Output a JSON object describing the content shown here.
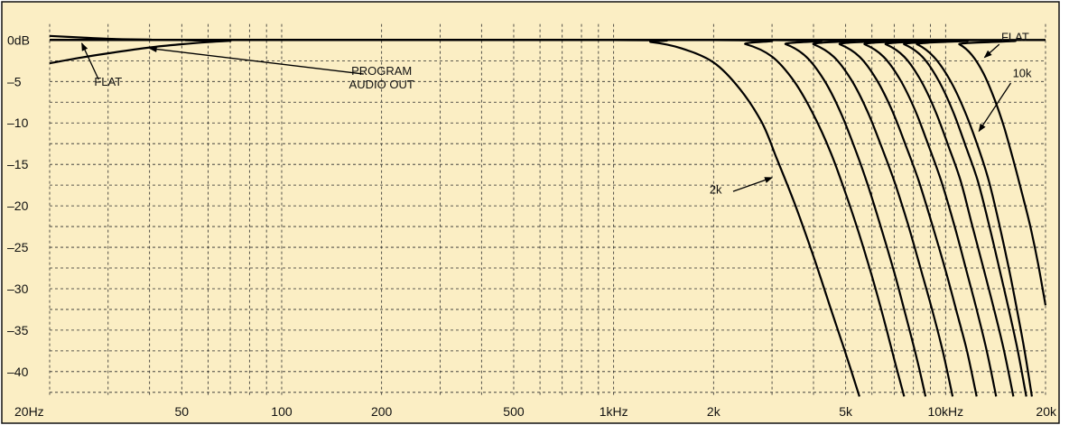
{
  "colors": {
    "background": "#fbeec4",
    "border": "#111111",
    "grid": "#2a2a2a",
    "curve": "#000000",
    "text": "#111111"
  },
  "chart_data": {
    "type": "line",
    "title": "",
    "xlabel": "",
    "ylabel": "",
    "x_scale": "log",
    "xlim": [
      20,
      20000
    ],
    "ylim": [
      -42.5,
      1.5
    ],
    "grid": true,
    "x_ticks": [
      {
        "value": 20,
        "label": "20Hz"
      },
      {
        "value": 50,
        "label": "50"
      },
      {
        "value": 100,
        "label": "100"
      },
      {
        "value": 200,
        "label": "200"
      },
      {
        "value": 500,
        "label": "500"
      },
      {
        "value": 1000,
        "label": "1kHz"
      },
      {
        "value": 2000,
        "label": "2k"
      },
      {
        "value": 5000,
        "label": "5k"
      },
      {
        "value": 10000,
        "label": "10kHz"
      },
      {
        "value": 20000,
        "label": "20k"
      }
    ],
    "y_ticks": [
      {
        "value": 0,
        "label": "0dB"
      },
      {
        "value": -5,
        "label": "–5"
      },
      {
        "value": -10,
        "label": "–10"
      },
      {
        "value": -15,
        "label": "–15"
      },
      {
        "value": -20,
        "label": "–20"
      },
      {
        "value": -25,
        "label": "–25"
      },
      {
        "value": -30,
        "label": "–30"
      },
      {
        "value": -35,
        "label": "–35"
      },
      {
        "value": -40,
        "label": "–40"
      }
    ],
    "series": [
      {
        "label": "FLAT (low end)",
        "points": [
          [
            20,
            0.5
          ],
          [
            25,
            0.3
          ],
          [
            30,
            0.15
          ],
          [
            40,
            0.05
          ],
          [
            60,
            0
          ],
          [
            20000,
            0
          ]
        ]
      },
      {
        "label": "PROGRAM AUDIO OUT",
        "points": [
          [
            20,
            -2.8
          ],
          [
            25,
            -2.1
          ],
          [
            30,
            -1.6
          ],
          [
            40,
            -0.9
          ],
          [
            50,
            -0.5
          ],
          [
            60,
            -0.25
          ],
          [
            70,
            -0.1
          ],
          [
            80,
            0
          ],
          [
            20000,
            0
          ]
        ]
      },
      {
        "points": [
          [
            20,
            0
          ],
          [
            1000,
            0
          ],
          [
            1300,
            -0.25
          ],
          [
            1600,
            -1.0
          ],
          [
            2000,
            -2.7
          ],
          [
            2400,
            -5.9
          ],
          [
            2800,
            -10.0
          ],
          [
            3100,
            -14.3
          ],
          [
            3500,
            -19.6
          ],
          [
            4000,
            -26.1
          ],
          [
            4500,
            -32.3
          ],
          [
            5000,
            -37.8
          ],
          [
            5500,
            -43.0
          ]
        ]
      },
      {
        "points": [
          [
            20,
            0
          ],
          [
            2000,
            0
          ],
          [
            2500,
            -0.5
          ],
          [
            3000,
            -2.0
          ],
          [
            3500,
            -5.0
          ],
          [
            4000,
            -9.0
          ],
          [
            4500,
            -13.5
          ],
          [
            5000,
            -18.5
          ],
          [
            5500,
            -23.5
          ],
          [
            6000,
            -28.5
          ],
          [
            6500,
            -33.5
          ],
          [
            7000,
            -38.5
          ],
          [
            7500,
            -43.0
          ]
        ]
      },
      {
        "points": [
          [
            20,
            0
          ],
          [
            2800,
            0
          ],
          [
            3300,
            -0.5
          ],
          [
            3800,
            -2.0
          ],
          [
            4300,
            -4.8
          ],
          [
            4800,
            -8.5
          ],
          [
            5300,
            -12.8
          ],
          [
            5800,
            -17.2
          ],
          [
            6300,
            -21.8
          ],
          [
            7000,
            -28.0
          ],
          [
            7500,
            -32.5
          ],
          [
            8200,
            -38.5
          ],
          [
            8700,
            -43.0
          ]
        ]
      },
      {
        "points": [
          [
            20,
            0
          ],
          [
            3500,
            0
          ],
          [
            4000,
            -0.5
          ],
          [
            4600,
            -2.0
          ],
          [
            5200,
            -4.8
          ],
          [
            5800,
            -8.5
          ],
          [
            6400,
            -12.8
          ],
          [
            7000,
            -17.0
          ],
          [
            7700,
            -22.2
          ],
          [
            8400,
            -27.5
          ],
          [
            9100,
            -32.5
          ],
          [
            9800,
            -37.5
          ],
          [
            10500,
            -43.0
          ]
        ]
      },
      {
        "points": [
          [
            20,
            0
          ],
          [
            4200,
            0
          ],
          [
            4800,
            -0.5
          ],
          [
            5500,
            -2.0
          ],
          [
            6200,
            -4.8
          ],
          [
            6900,
            -8.5
          ],
          [
            7600,
            -12.8
          ],
          [
            8300,
            -17.0
          ],
          [
            9100,
            -22.2
          ],
          [
            10000,
            -27.8
          ],
          [
            10800,
            -32.8
          ],
          [
            11600,
            -37.5
          ],
          [
            12400,
            -43.0
          ]
        ]
      },
      {
        "points": [
          [
            20,
            0
          ],
          [
            5000,
            0
          ],
          [
            5700,
            -0.5
          ],
          [
            6500,
            -2.0
          ],
          [
            7300,
            -4.8
          ],
          [
            8100,
            -8.5
          ],
          [
            8900,
            -12.8
          ],
          [
            9700,
            -17.0
          ],
          [
            10600,
            -22.2
          ],
          [
            11500,
            -27.5
          ],
          [
            12400,
            -32.5
          ],
          [
            13300,
            -37.5
          ],
          [
            14200,
            -43.0
          ]
        ]
      },
      {
        "points": [
          [
            20,
            0
          ],
          [
            5800,
            0
          ],
          [
            6600,
            -0.5
          ],
          [
            7500,
            -2.0
          ],
          [
            8400,
            -4.8
          ],
          [
            9300,
            -8.5
          ],
          [
            10200,
            -12.8
          ],
          [
            11100,
            -17.0
          ],
          [
            12000,
            -22.2
          ],
          [
            13000,
            -27.5
          ],
          [
            14000,
            -32.5
          ],
          [
            15000,
            -37.5
          ],
          [
            16000,
            -43.0
          ]
        ]
      },
      {
        "points": [
          [
            20,
            0
          ],
          [
            6600,
            0
          ],
          [
            7500,
            -0.5
          ],
          [
            8500,
            -2.0
          ],
          [
            9500,
            -4.8
          ],
          [
            10500,
            -8.5
          ],
          [
            11500,
            -12.8
          ],
          [
            12500,
            -17.0
          ],
          [
            13500,
            -22.2
          ],
          [
            14500,
            -27.5
          ],
          [
            15500,
            -32.5
          ],
          [
            16500,
            -37.5
          ],
          [
            17500,
            -43.0
          ]
        ]
      },
      {
        "label": "10k",
        "points": [
          [
            20,
            0
          ],
          [
            7300,
            0
          ],
          [
            8200,
            -0.5
          ],
          [
            9200,
            -2.0
          ],
          [
            10300,
            -4.8
          ],
          [
            11400,
            -8.5
          ],
          [
            12500,
            -12.8
          ],
          [
            13500,
            -17.0
          ],
          [
            14500,
            -22.2
          ],
          [
            15500,
            -27.5
          ],
          [
            16400,
            -32.5
          ],
          [
            17300,
            -37.5
          ],
          [
            18200,
            -43.0
          ]
        ]
      },
      {
        "label": "FLAT (high end)",
        "points": [
          [
            20,
            0
          ],
          [
            10000,
            0
          ],
          [
            11000,
            -0.5
          ],
          [
            12000,
            -1.8
          ],
          [
            13000,
            -4.0
          ],
          [
            14000,
            -7.0
          ],
          [
            15000,
            -10.5
          ],
          [
            16000,
            -14.5
          ],
          [
            17000,
            -18.5
          ],
          [
            18000,
            -22.5
          ],
          [
            19000,
            -27.0
          ],
          [
            20000,
            -32.0
          ]
        ]
      }
    ],
    "annotations": [
      {
        "id": "flat-low",
        "text": "FLAT",
        "x": 30,
        "y": -5.5,
        "arrow_to": [
          25,
          -0.4
        ]
      },
      {
        "id": "program",
        "text": "PROGRAM\nAUDIO OUT",
        "x": 200,
        "y": -4.2,
        "arrow_to": [
          40,
          -1.0
        ]
      },
      {
        "id": "flat-high",
        "text": "FLAT",
        "x": 16200,
        "y": -0.1,
        "arrow_to": [
          13100,
          -2.1
        ]
      },
      {
        "id": "10k",
        "text": "10k",
        "x": 17000,
        "y": -4.5,
        "arrow_to": [
          12600,
          -11.0
        ]
      },
      {
        "id": "2k",
        "text": "2k",
        "x": 2030,
        "y": -18.5,
        "arrow_to": [
          3000,
          -16.6
        ]
      }
    ]
  }
}
